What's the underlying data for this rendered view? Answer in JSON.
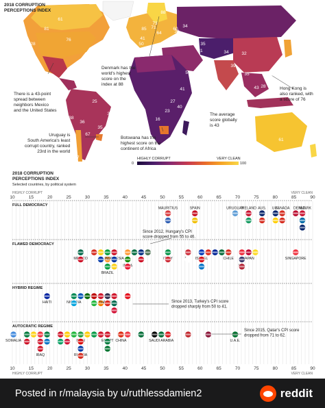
{
  "map": {
    "title_line1": "2018 CORRUPTION",
    "title_line2": "PERCEPTIONS INDEX",
    "annotations": [
      {
        "id": "denmark",
        "lines": [
          "Denmark has the",
          "world's highest",
          "score on the",
          "index at 88"
        ]
      },
      {
        "id": "mexico",
        "lines": [
          "There is a 43-point",
          "spread between",
          "neighbors Mexico",
          "and the United States"
        ]
      },
      {
        "id": "hongkong",
        "lines": [
          "Hong Kong is",
          "also ranked, with",
          "a score of 76"
        ]
      },
      {
        "id": "average",
        "lines": [
          "The average",
          "score globally",
          "is 43"
        ]
      },
      {
        "id": "uruguay",
        "lines": [
          "Uruguay is",
          "South America's least",
          "corrupt country, ranked",
          "23rd in the world"
        ]
      },
      {
        "id": "botswana",
        "lines": [
          "Botswana has the",
          "highest score on the",
          "continent of Africa"
        ]
      }
    ],
    "map_values": [
      "88",
      "73",
      "81",
      "76",
      "61",
      "28",
      "41",
      "50",
      "64",
      "60",
      "34",
      "32",
      "71",
      "85",
      "42",
      "28",
      "72",
      "72",
      "35",
      "31",
      "34",
      "28",
      "71",
      "39",
      "43",
      "73",
      "35",
      "19",
      "27",
      "23",
      "16",
      "40",
      "41",
      "57",
      "25",
      "67",
      "38",
      "36",
      "35",
      "35",
      "38",
      "27",
      "61",
      "77",
      "28",
      "39",
      "32"
    ],
    "legend": {
      "low_label": "HIGHLY CORRUPT",
      "high_label": "VERY CLEAN",
      "min": "0",
      "max": "100"
    }
  },
  "colors": {
    "very_clean": "#f9d646",
    "highly_corrupt": "#1a0a3a",
    "mid": "#c73a4f",
    "footer_bg": "#1a1a1b",
    "reddit_orange": "#ff4500"
  },
  "chart_data": {
    "type": "scatter",
    "title": "2018 CORRUPTION PERCEPTIONS INDEX",
    "subtitle": "Selected countries, by political system",
    "xlabel_low": "HIGHLY CORRUPT",
    "xlabel_high": "VERY CLEAN",
    "xlim": [
      10,
      90
    ],
    "xticks": [
      10,
      15,
      20,
      25,
      30,
      35,
      40,
      45,
      50,
      55,
      60,
      65,
      70,
      75,
      80,
      85,
      90
    ],
    "categories": [
      "FULL DEMOCRACY",
      "FLAWED DEMOCRACY",
      "HYBRID REGIME",
      "AUTOCRATIC REGIME"
    ],
    "series": [
      {
        "name": "FULL DEMOCRACY",
        "points": [
          {
            "label": "MAURITIUS",
            "x": 51,
            "color": "#d8363a"
          },
          {
            "label": "",
            "x": 51,
            "color": "#2f5fb3"
          },
          {
            "label": "SPAIN",
            "x": 58,
            "color": "#c60b1e"
          },
          {
            "label": "",
            "x": 58,
            "color": "#f1bf00"
          },
          {
            "label": "URUGUAY",
            "x": 70,
            "color": "#5b9bd5"
          },
          {
            "label": "",
            "x": 73,
            "color": "#c8102e"
          },
          {
            "label": "AUS.",
            "x": 77,
            "color": "#012169"
          },
          {
            "label": "",
            "x": 77,
            "color": "#d52b1e"
          },
          {
            "label": "CANADA",
            "x": 81,
            "color": "#d52b1e"
          },
          {
            "label": "",
            "x": 82,
            "color": "#d52b1e"
          },
          {
            "label": "DENMARK",
            "x": 88,
            "color": "#c8102e"
          },
          {
            "label": "",
            "x": 85,
            "color": "#ba0c2f"
          },
          {
            "label": "",
            "x": 87,
            "color": "#006aa7"
          },
          {
            "label": "IRELAND",
            "x": 73,
            "color": "#169b62"
          },
          {
            "label": "U.K.",
            "x": 80,
            "color": "#012169"
          },
          {
            "label": "",
            "x": 80,
            "color": "#ffce00"
          },
          {
            "label": "N.Z.",
            "x": 87,
            "color": "#012169"
          }
        ]
      },
      {
        "name": "FLAWED DEMOCRACY",
        "points": [
          {
            "label": "MEXICO",
            "x": 28,
            "color": "#006847"
          },
          {
            "label": "",
            "x": 28,
            "color": "#ce1126"
          },
          {
            "label": "",
            "x": 31,
            "color": "#d52b1e"
          },
          {
            "label": "",
            "x": 33,
            "color": "#fcd116"
          },
          {
            "label": "",
            "x": 34,
            "color": "#0038a8"
          },
          {
            "label": "",
            "x": 35,
            "color": "#009c3b"
          },
          {
            "label": "",
            "x": 35,
            "color": "#ff9933"
          },
          {
            "label": "BRAZIL",
            "x": 35,
            "color": "#009c3b"
          },
          {
            "label": "INDONESIA",
            "x": 38,
            "color": "#ce1126"
          },
          {
            "label": "",
            "x": 37,
            "color": "#0033a0"
          },
          {
            "label": "",
            "x": 37,
            "color": "#fcd116"
          },
          {
            "label": "",
            "x": 41,
            "color": "#ff9933"
          },
          {
            "label": "INDIA",
            "x": 41,
            "color": "#138808"
          },
          {
            "label": "",
            "x": 40,
            "color": "#e8112d"
          },
          {
            "label": "",
            "x": 43,
            "color": "#006b3f"
          },
          {
            "label": "",
            "x": 44,
            "color": "#002b7f"
          },
          {
            "label": "",
            "x": 45,
            "color": "#ce1126"
          },
          {
            "label": "",
            "x": 46,
            "color": "#477050"
          },
          {
            "label": "ITALY",
            "x": 52,
            "color": "#009246"
          },
          {
            "label": "",
            "x": 52,
            "color": "#ce2b37"
          },
          {
            "label": "S.K.",
            "x": 57,
            "color": "#cd2e3a"
          },
          {
            "label": "",
            "x": 56,
            "color": "#ffffff"
          },
          {
            "label": "ISRAEL",
            "x": 61,
            "color": "#0038b8"
          },
          {
            "label": "",
            "x": 60,
            "color": "#d7141a"
          },
          {
            "label": "",
            "x": 61,
            "color": "#0072c6"
          },
          {
            "label": "",
            "x": 63,
            "color": "#da291c"
          },
          {
            "label": "",
            "x": 64,
            "color": "#002395"
          },
          {
            "label": "CHILE",
            "x": 67,
            "color": "#d52b1e"
          },
          {
            "label": "",
            "x": 66,
            "color": "#046a38"
          },
          {
            "label": "JAPAN",
            "x": 73,
            "color": "#bc002d"
          },
          {
            "label": "",
            "x": 72,
            "color": "#ed2939"
          },
          {
            "label": "",
            "x": 75,
            "color": "#fdda24"
          },
          {
            "label": "U.S.",
            "x": 71,
            "color": "#3c3b6e"
          },
          {
            "label": "",
            "x": 71,
            "color": "#b22234"
          },
          {
            "label": "SINGAPORE",
            "x": 85,
            "color": "#ef3340"
          }
        ]
      },
      {
        "name": "HYBRID REGIME",
        "points": [
          {
            "label": "HAITI",
            "x": 20,
            "color": "#00209f"
          },
          {
            "label": "NIGERIA",
            "x": 27,
            "color": "#008751"
          },
          {
            "label": "",
            "x": 28,
            "color": "#0052b4"
          },
          {
            "label": "",
            "x": 31,
            "color": "#bb0000"
          },
          {
            "label": "",
            "x": 30,
            "color": "#006600"
          },
          {
            "label": "",
            "x": 26,
            "color": "#00a3dd"
          },
          {
            "label": "",
            "x": 32,
            "color": "#1eb53a"
          },
          {
            "label": "",
            "x": 33,
            "color": "#ce1126"
          },
          {
            "label": "",
            "x": 34,
            "color": "#f77f00"
          },
          {
            "label": "THAILAND",
            "x": 36,
            "color": "#2d2a4a"
          },
          {
            "label": "",
            "x": 36,
            "color": "#da251d"
          },
          {
            "label": "",
            "x": 37,
            "color": "#ce1126"
          },
          {
            "label": "",
            "x": 38,
            "color": "#006a4e"
          },
          {
            "label": "",
            "x": 38,
            "color": "#d21034"
          },
          {
            "label": "",
            "x": 41,
            "color": "#e30a17"
          }
        ]
      },
      {
        "name": "AUTOCRATIC REGIME",
        "points": [
          {
            "label": "SOMALIA",
            "x": 10,
            "color": "#4189dd"
          },
          {
            "label": "",
            "x": 13,
            "color": "#007a3d"
          },
          {
            "label": "",
            "x": 14,
            "color": "#ce1126"
          },
          {
            "label": "",
            "x": 16,
            "color": "#fcd116"
          },
          {
            "label": "",
            "x": 17,
            "color": "#ef3340"
          },
          {
            "label": "",
            "x": 18,
            "color": "#cf142b"
          },
          {
            "label": "IRAQ",
            "x": 18,
            "color": "#ce1126"
          },
          {
            "label": "",
            "x": 19,
            "color": "#007a3d"
          },
          {
            "label": "",
            "x": 20,
            "color": "#0072c6"
          },
          {
            "label": "",
            "x": 22,
            "color": "#ce1126"
          },
          {
            "label": "",
            "x": 23,
            "color": "#009e60"
          },
          {
            "label": "",
            "x": 25,
            "color": "#ffcc00"
          },
          {
            "label": "",
            "x": 25,
            "color": "#d21034"
          },
          {
            "label": "",
            "x": 26,
            "color": "#1eb53a"
          },
          {
            "label": "IRAN",
            "x": 28,
            "color": "#239f40"
          },
          {
            "label": "",
            "x": 28,
            "color": "#da0000"
          },
          {
            "label": "RUSSIA",
            "x": 28,
            "color": "#0039a6"
          },
          {
            "label": "",
            "x": 29,
            "color": "#d52b1e"
          },
          {
            "label": "",
            "x": 30,
            "color": "#fecb00"
          },
          {
            "label": "",
            "x": 31,
            "color": "#009a44"
          },
          {
            "label": "",
            "x": 33,
            "color": "#ce1126"
          },
          {
            "label": "EGYPT",
            "x": 35,
            "color": "#ce1126"
          },
          {
            "label": "",
            "x": 35,
            "color": "#007a3d"
          },
          {
            "label": "CHINA",
            "x": 39,
            "color": "#de2910"
          },
          {
            "label": "",
            "x": 36,
            "color": "#00732f"
          },
          {
            "label": "",
            "x": 40,
            "color": "#ef3340"
          },
          {
            "label": "",
            "x": 44,
            "color": "#006c35"
          },
          {
            "label": "SAUDI ARABIA",
            "x": 49,
            "color": "#006c35"
          },
          {
            "label": "",
            "x": 48,
            "color": "#000000"
          },
          {
            "label": "",
            "x": 52,
            "color": "#db161b"
          },
          {
            "label": "",
            "x": 56,
            "color": "#c1272d"
          },
          {
            "label": "",
            "x": 62,
            "color": "#8a1538"
          },
          {
            "label": "U.A.E.",
            "x": 70,
            "color": "#00732f"
          }
        ]
      }
    ],
    "annotations": [
      {
        "lines": [
          "Since 2012, Hungary's CPI",
          "score dropped from 55 to 46."
        ]
      },
      {
        "lines": [
          "Since 2013, Turkey's CPI score",
          "dropped sharply from 50 to 41."
        ]
      },
      {
        "lines": [
          "Since 2015, Qatar's CPI score",
          "dropped from 71 to 62."
        ]
      }
    ]
  },
  "footer": {
    "posted_text": "Posted in r/malaysia by u/ruthlessdamien2",
    "brand": "reddit",
    "brand_icon": "reddit-alien-icon"
  }
}
